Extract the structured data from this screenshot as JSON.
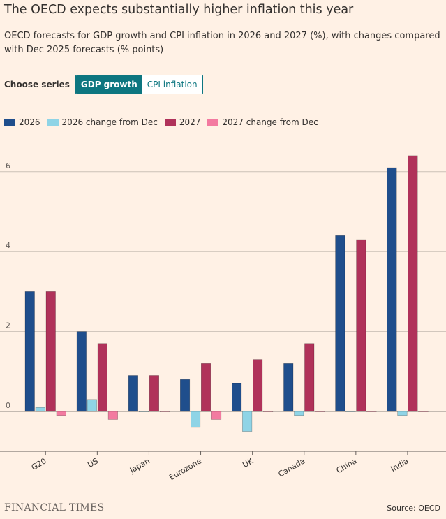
{
  "title": "The OECD expects substantially higher inflation this year",
  "subtitle": "OECD forecasts for GDP growth and CPI inflation in 2026 and 2027 (%), with changes compared with Dec 2025 forecasts (% points)",
  "chooser": {
    "label": "Choose series",
    "options": [
      "GDP growth",
      "CPI inflation"
    ],
    "selected": "GDP growth"
  },
  "brand": "FINANCIAL TIMES",
  "source": "Source: OECD",
  "chart_data": {
    "type": "bar",
    "title": "The OECD expects substantially higher inflation this year",
    "xlabel": "",
    "ylabel": "",
    "ylim": [
      -1,
      6.9
    ],
    "yticks": [
      0,
      2,
      4,
      6
    ],
    "grid": true,
    "legend_position": "top-left",
    "categories": [
      "G20",
      "US",
      "Japan",
      "Eurozone",
      "UK",
      "Canada",
      "China",
      "India"
    ],
    "series": [
      {
        "name": "2026",
        "color": "#1f4e8c",
        "values": [
          3.0,
          2.0,
          0.9,
          0.8,
          0.7,
          1.2,
          4.4,
          6.1
        ]
      },
      {
        "name": "2026 change from Dec",
        "color": "#8fd4e6",
        "values": [
          0.1,
          0.3,
          0.0,
          -0.4,
          -0.5,
          -0.1,
          0.0,
          -0.1
        ]
      },
      {
        "name": "2027",
        "color": "#b0325a",
        "values": [
          3.0,
          1.7,
          0.9,
          1.2,
          1.3,
          1.7,
          4.3,
          6.4
        ]
      },
      {
        "name": "2027 change from Dec",
        "color": "#f37aa0",
        "values": [
          -0.1,
          -0.2,
          0.0,
          -0.2,
          0.0,
          0.0,
          0.0,
          0.0
        ]
      }
    ]
  }
}
